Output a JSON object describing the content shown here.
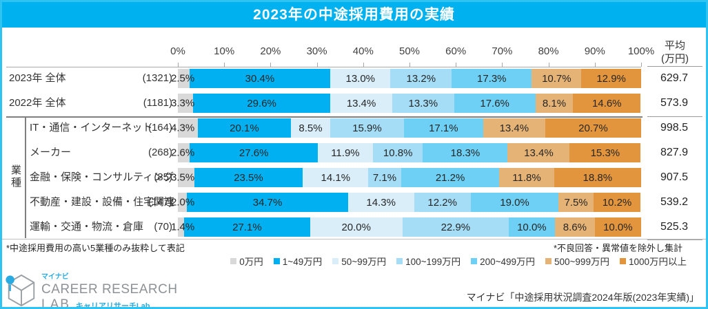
{
  "title": "2023年の中途採用費用の実績",
  "colors": {
    "accent": "#00b1f0",
    "frame_border": "#2fc3f2",
    "grid": "#a6a6a6",
    "group_line": "#7f7f7f"
  },
  "axis": {
    "ticks": [
      "0%",
      "10%",
      "20%",
      "30%",
      "40%",
      "50%",
      "60%",
      "70%",
      "80%",
      "90%",
      "100%"
    ],
    "avg_header_line1": "平均",
    "avg_header_line2": "(万円)"
  },
  "legend": [
    {
      "label": "0万円",
      "color": "#d9d9d9"
    },
    {
      "label": "1~49万円",
      "color": "#00b0f0"
    },
    {
      "label": "50~99万円",
      "color": "#d9eef9"
    },
    {
      "label": "100~199万円",
      "color": "#a5ddf6"
    },
    {
      "label": "200~499万円",
      "color": "#6fd0f5"
    },
    {
      "label": "500~999万円",
      "color": "#e6b377"
    },
    {
      "label": "1000万円以上",
      "color": "#e2953c"
    }
  ],
  "group_label": "業種",
  "chart_data": {
    "type": "bar",
    "stacked": true,
    "orientation": "horizontal",
    "title": "2023年の中途採用費用の実績",
    "xlim": [
      0,
      100
    ],
    "unit": "%",
    "series_names": [
      "0万円",
      "1~49万円",
      "50~99万円",
      "100~199万円",
      "200~499万円",
      "500~999万円",
      "1000万円以上"
    ],
    "rows": [
      {
        "label": "2023年 全体",
        "count": "(1321)",
        "group": "overall",
        "values": [
          2.5,
          30.4,
          13.0,
          13.2,
          17.3,
          10.7,
          12.9
        ],
        "value_labels": [
          "2.5%",
          "30.4%",
          "13.0%",
          "13.2%",
          "17.3%",
          "10.7%",
          "12.9%"
        ],
        "average": "629.7"
      },
      {
        "label": "2022年 全体",
        "count": "(1181)",
        "group": "overall",
        "values": [
          3.3,
          29.6,
          13.4,
          13.3,
          17.6,
          8.1,
          14.6
        ],
        "value_labels": [
          "3.3%",
          "29.6%",
          "13.4%",
          "13.3%",
          "17.6%",
          "8.1%",
          "14.6%"
        ],
        "average": "573.9"
      },
      {
        "label": "IT・通信・インターネット",
        "count": "(164)",
        "group": "industry",
        "values": [
          4.3,
          20.1,
          8.5,
          15.9,
          17.1,
          13.4,
          20.7
        ],
        "value_labels": [
          "4.3%",
          "20.1%",
          "8.5%",
          "15.9%",
          "17.1%",
          "13.4%",
          "20.7%"
        ],
        "average": "998.5"
      },
      {
        "label": "メーカー",
        "count": "(268)",
        "group": "industry",
        "values": [
          2.6,
          27.6,
          11.9,
          10.8,
          18.3,
          13.4,
          15.3
        ],
        "value_labels": [
          "2.6%",
          "27.6%",
          "11.9%",
          "10.8%",
          "18.3%",
          "13.4%",
          "15.3%"
        ],
        "average": "827.9"
      },
      {
        "label": "金融・保険・コンサルティング",
        "count": "(85)",
        "group": "industry",
        "values": [
          3.5,
          23.5,
          14.1,
          7.1,
          21.2,
          11.8,
          18.8
        ],
        "value_labels": [
          "3.5%",
          "23.5%",
          "14.1%",
          "7.1%",
          "21.2%",
          "11.8%",
          "18.8%"
        ],
        "average": "907.5"
      },
      {
        "label": "不動産・建設・設備・住宅関連",
        "count": "(147)",
        "group": "industry",
        "values": [
          2.0,
          34.7,
          14.3,
          12.2,
          19.0,
          7.5,
          10.2
        ],
        "value_labels": [
          "2.0%",
          "34.7%",
          "14.3%",
          "12.2%",
          "19.0%",
          "7.5%",
          "10.2%"
        ],
        "average": "539.2"
      },
      {
        "label": "運輸・交通・物流・倉庫",
        "count": "(70)",
        "group": "industry",
        "values": [
          1.4,
          27.1,
          20.0,
          22.9,
          10.0,
          8.6,
          10.0
        ],
        "value_labels": [
          "1.4%",
          "27.1%",
          "20.0%",
          "22.9%",
          "10.0%",
          "8.6%",
          "10.0%"
        ],
        "average": "525.3"
      }
    ]
  },
  "notes": {
    "left": "*中途採用費用の高い5業種のみ抜粋して表記",
    "right": "*不良回答・異常値を除外し集計"
  },
  "footer": {
    "brand_small": "マイナビ",
    "brand_line1": "CAREER RESEARCH",
    "brand_line2": "LAB",
    "brand_sub": "キャリアリサーチLab",
    "source": "マイナビ「中途採用状況調査2024年版(2023年実績)」"
  }
}
